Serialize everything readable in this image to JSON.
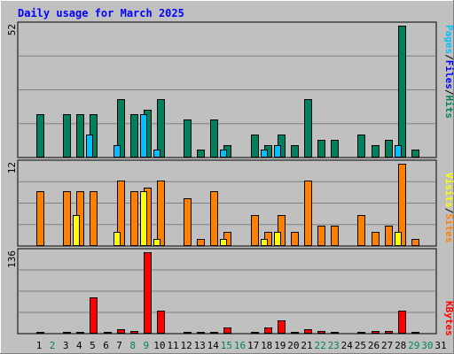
{
  "title": "Daily usage for March 2025",
  "colors": {
    "background": "#c0c0c0",
    "plot": "#c0c0c0",
    "grid": "#808080",
    "title": "#0000ff",
    "hits": "#00805c",
    "files": "#00c0ff",
    "sites": "#ff8000",
    "visits": "#ffff00",
    "kbytes": "#ff0000",
    "weekday_label": "#000000",
    "weekend_label": "#00805c"
  },
  "legends": {
    "hits_files": [
      {
        "text": "Hits",
        "color": "#00805c"
      },
      {
        "text": "/",
        "color": "#000000"
      },
      {
        "text": "Files",
        "color": "#0000ff"
      },
      {
        "text": "/",
        "color": "#000000"
      },
      {
        "text": "Pages",
        "color": "#00c0ff"
      }
    ],
    "sites_visits": [
      {
        "text": "Sites",
        "color": "#ff8000"
      },
      {
        "text": "/",
        "color": "#000000"
      },
      {
        "text": "Visits",
        "color": "#ffff00"
      }
    ],
    "kbytes": [
      {
        "text": "KBytes",
        "color": "#ff0000"
      }
    ]
  },
  "chart_data": [
    {
      "type": "bar",
      "panel": "hits-files-pages",
      "max_label": "52",
      "ylim": [
        0,
        52
      ],
      "categories": [
        "1",
        "2",
        "3",
        "4",
        "5",
        "6",
        "7",
        "8",
        "9",
        "10",
        "11",
        "12",
        "13",
        "14",
        "15",
        "16",
        "17",
        "18",
        "19",
        "20",
        "21",
        "22",
        "23",
        "24",
        "25",
        "26",
        "27",
        "28",
        "29",
        "30",
        "31"
      ],
      "weekend": [
        false,
        true,
        false,
        false,
        false,
        false,
        false,
        true,
        true,
        false,
        false,
        false,
        false,
        false,
        true,
        true,
        false,
        false,
        false,
        false,
        false,
        true,
        true,
        false,
        false,
        false,
        false,
        false,
        true,
        true,
        false
      ],
      "series": [
        {
          "name": "Hits",
          "values": [
            17,
            0,
            17,
            17,
            17,
            0,
            23,
            17,
            19,
            23,
            0,
            15,
            3,
            15,
            5,
            0,
            9,
            5,
            9,
            5,
            23,
            7,
            7,
            0,
            9,
            5,
            7,
            52,
            3,
            0,
            0
          ]
        },
        {
          "name": "Pages",
          "values": [
            0,
            0,
            0,
            0,
            9,
            0,
            5,
            0,
            17,
            3,
            0,
            0,
            0,
            0,
            3,
            0,
            0,
            3,
            5,
            0,
            0,
            0,
            0,
            0,
            0,
            0,
            0,
            5,
            0,
            0,
            0
          ]
        }
      ]
    },
    {
      "type": "bar",
      "panel": "sites-visits",
      "max_label": "12",
      "ylim": [
        0,
        12
      ],
      "categories": [
        "1",
        "2",
        "3",
        "4",
        "5",
        "6",
        "7",
        "8",
        "9",
        "10",
        "11",
        "12",
        "13",
        "14",
        "15",
        "16",
        "17",
        "18",
        "19",
        "20",
        "21",
        "22",
        "23",
        "24",
        "25",
        "26",
        "27",
        "28",
        "29",
        "30",
        "31"
      ],
      "series": [
        {
          "name": "Sites",
          "values": [
            8,
            0,
            8,
            8,
            8,
            0,
            9.5,
            8,
            8.5,
            9.5,
            0,
            7,
            1,
            8,
            2,
            0,
            4.5,
            2,
            4.5,
            2,
            9.5,
            3,
            3,
            0,
            4.5,
            2,
            3,
            12,
            1,
            0,
            0
          ]
        },
        {
          "name": "Visits",
          "values": [
            0,
            0,
            0,
            4.5,
            0,
            0,
            2,
            0,
            8,
            1,
            0,
            0,
            0,
            0,
            1,
            0,
            0,
            1,
            2,
            0,
            0,
            0,
            0,
            0,
            0,
            0,
            0,
            2,
            0,
            0,
            0
          ]
        }
      ]
    },
    {
      "type": "bar",
      "panel": "kbytes",
      "max_label": "136",
      "ylim": [
        0,
        136
      ],
      "categories": [
        "1",
        "2",
        "3",
        "4",
        "5",
        "6",
        "7",
        "8",
        "9",
        "10",
        "11",
        "12",
        "13",
        "14",
        "15",
        "16",
        "17",
        "18",
        "19",
        "20",
        "21",
        "22",
        "23",
        "24",
        "25",
        "26",
        "27",
        "28",
        "29",
        "30",
        "31"
      ],
      "series": [
        {
          "name": "KBytes",
          "values": [
            3,
            0,
            3,
            3,
            60,
            3,
            7,
            4,
            136,
            38,
            0,
            3,
            3,
            3,
            10,
            0,
            3,
            10,
            22,
            3,
            7,
            5,
            3,
            0,
            3,
            4,
            4,
            38,
            3,
            0,
            0
          ]
        }
      ]
    }
  ]
}
